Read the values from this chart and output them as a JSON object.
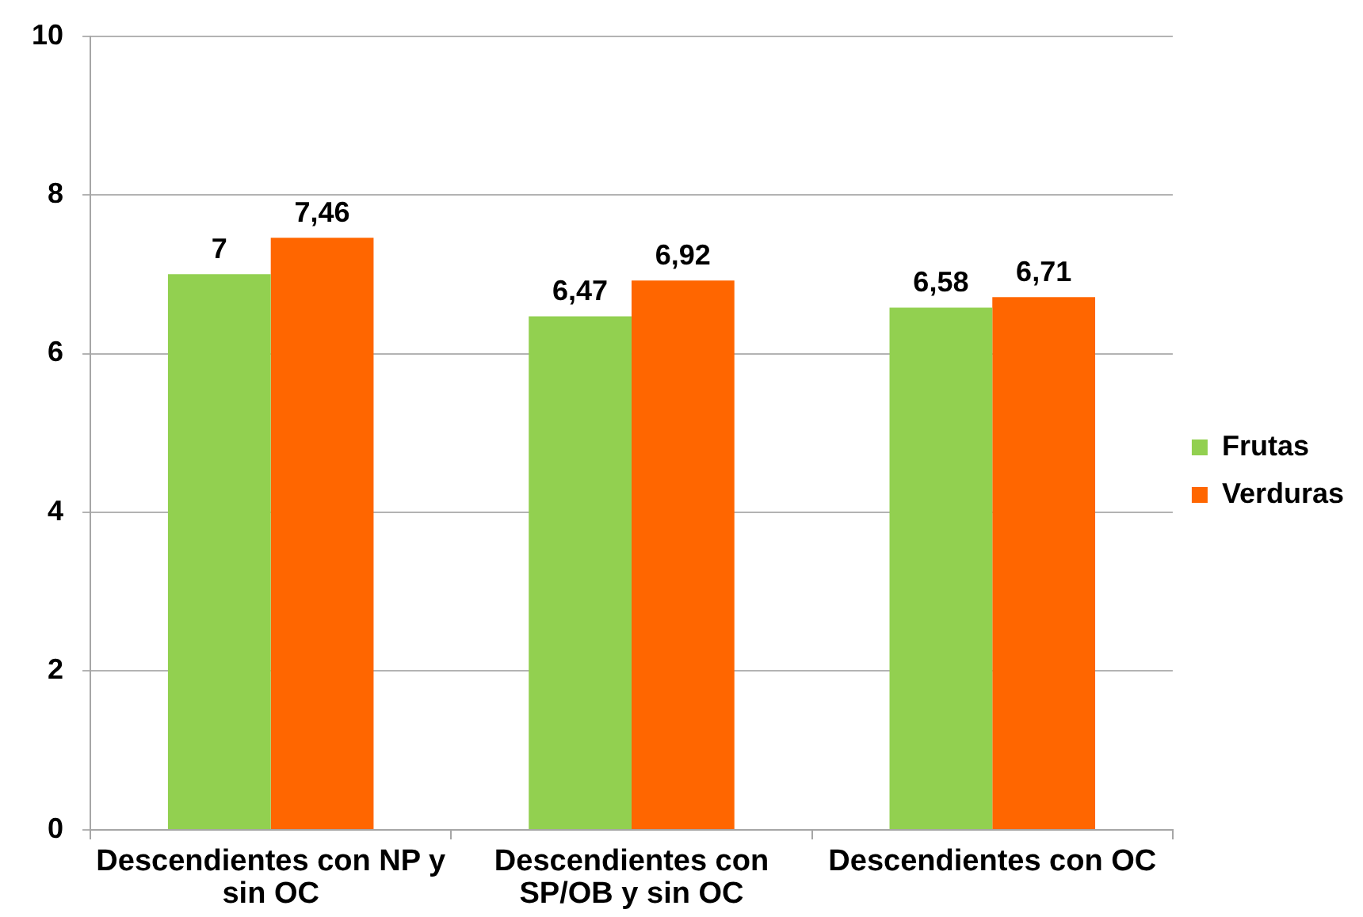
{
  "chart_data": {
    "type": "bar",
    "categories": [
      "Descendientes con NP y sin OC",
      "Descendientes con SP/OB y sin OC",
      "Descendientes con OC"
    ],
    "series": [
      {
        "name": "Frutas",
        "color": "#92d050",
        "values": [
          7,
          6.47,
          6.58
        ],
        "value_labels": [
          "7",
          "6,47",
          "6,58"
        ]
      },
      {
        "name": "Verduras",
        "color": "#ff6600",
        "values": [
          7.46,
          6.92,
          6.71
        ],
        "value_labels": [
          "7,46",
          "6,92",
          "6,71"
        ]
      }
    ],
    "ylim": [
      0,
      10
    ],
    "yticks": [
      0,
      2,
      4,
      6,
      8,
      10
    ],
    "grid": "y",
    "legend": "right"
  }
}
